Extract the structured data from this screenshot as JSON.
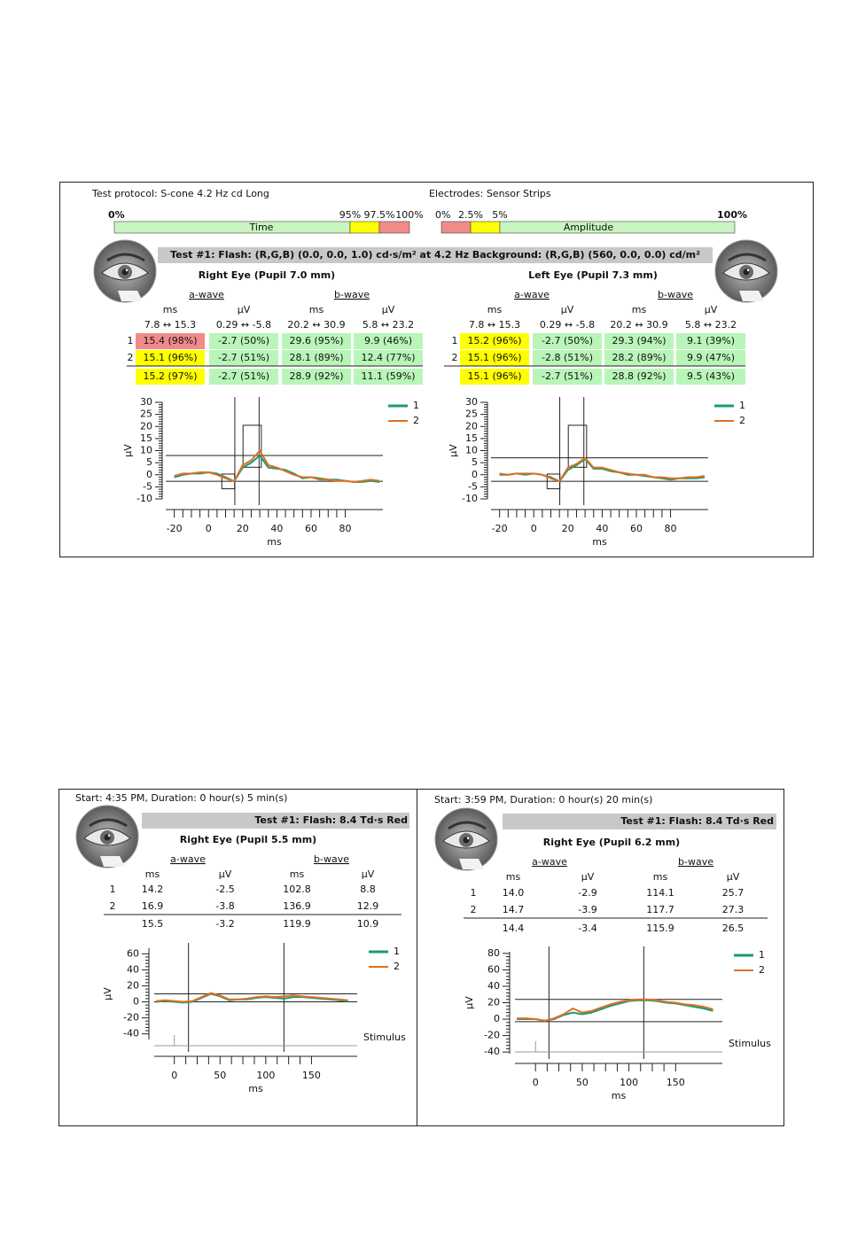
{
  "report": {
    "protocol": "Test protocol: S-cone 4.2 Hz cd Long",
    "electrodes": "Electrodes: Sensor Strips",
    "time_scale": {
      "labels": [
        "0%",
        "95%",
        "97.5%",
        "100%"
      ],
      "title": "Time"
    },
    "amplitude_scale": {
      "labels": [
        "0%",
        "2.5%",
        "5%",
        "100%"
      ],
      "title": "Amplitude"
    },
    "test_bar": "Test #1:   Flash: (R,G,B) (0.0, 0.0, 1.0) cd·s/m² at 4.2 Hz   Background: (R,G,B) (560, 0.0, 0.0) cd/m²",
    "eyes": [
      {
        "title": "Right Eye (Pupil 7.0 mm)",
        "wave_headers": [
          "a-wave",
          "b-wave"
        ],
        "units": [
          "ms",
          "µV",
          "ms",
          "µV"
        ],
        "ranges": [
          "7.8 ↔ 15.3",
          "0.29 ↔ -5.8",
          "20.2 ↔ 30.9",
          "5.8 ↔ 23.2"
        ],
        "rows": [
          {
            "label": "1",
            "cells": [
              "15.4 (98%)",
              "-2.7 (50%)",
              "29.6 (95%)",
              "9.9 (46%)"
            ],
            "colors": [
              "#f28a8a",
              "#b9f5b9",
              "#b9f5b9",
              "#b9f5b9"
            ]
          },
          {
            "label": "2",
            "cells": [
              "15.1 (96%)",
              "-2.7 (51%)",
              "28.1 (89%)",
              "12.4 (77%)"
            ],
            "colors": [
              "#ffff00",
              "#b9f5b9",
              "#b9f5b9",
              "#b9f5b9"
            ]
          }
        ],
        "summary": {
          "cells": [
            "15.2 (97%)",
            "-2.7 (51%)",
            "28.9 (92%)",
            "11.1 (59%)"
          ],
          "colors": [
            "#ffff00",
            "#b9f5b9",
            "#b9f5b9",
            "#b9f5b9"
          ]
        }
      },
      {
        "title": "Left Eye (Pupil 7.3 mm)",
        "wave_headers": [
          "a-wave",
          "b-wave"
        ],
        "units": [
          "ms",
          "µV",
          "ms",
          "µV"
        ],
        "ranges": [
          "7.8 ↔ 15.3",
          "0.29 ↔ -5.8",
          "20.2 ↔ 30.9",
          "5.8 ↔ 23.2"
        ],
        "rows": [
          {
            "label": "1",
            "cells": [
              "15.2 (96%)",
              "-2.7 (50%)",
              "29.3 (94%)",
              "9.1 (39%)"
            ],
            "colors": [
              "#ffff00",
              "#b9f5b9",
              "#b9f5b9",
              "#b9f5b9"
            ]
          },
          {
            "label": "2",
            "cells": [
              "15.1 (96%)",
              "-2.8 (51%)",
              "28.2 (89%)",
              "9.9 (47%)"
            ],
            "colors": [
              "#ffff00",
              "#b9f5b9",
              "#b9f5b9",
              "#b9f5b9"
            ]
          }
        ],
        "summary": {
          "cells": [
            "15.1 (96%)",
            "-2.7 (51%)",
            "28.8 (92%)",
            "9.5 (43%)"
          ],
          "colors": [
            "#ffff00",
            "#b9f5b9",
            "#b9f5b9",
            "#b9f5b9"
          ]
        }
      }
    ]
  },
  "sessions": [
    {
      "start": "Start: 4:35 PM, Duration: 0 hour(s) 5 min(s)",
      "test_bar": "Test #1:   Flash: 8.4 Td·s Red",
      "title": "Right Eye (Pupil 5.5 mm)",
      "wave_headers": [
        "a-wave",
        "b-wave"
      ],
      "units": [
        "ms",
        "µV",
        "ms",
        "µV"
      ],
      "rows": [
        {
          "label": "1",
          "cells": [
            "14.2",
            "-2.5",
            "102.8",
            "8.8"
          ]
        },
        {
          "label": "2",
          "cells": [
            "16.9",
            "-3.8",
            "136.9",
            "12.9"
          ]
        }
      ],
      "summary": {
        "cells": [
          "15.5",
          "-3.2",
          "119.9",
          "10.9"
        ]
      }
    },
    {
      "start": "Start: 3:59 PM, Duration: 0 hour(s) 20 min(s)",
      "test_bar": "Test #1:   Flash: 8.4 Td·s Red",
      "title": "Right Eye (Pupil 6.2 mm)",
      "wave_headers": [
        "a-wave",
        "b-wave"
      ],
      "units": [
        "ms",
        "µV",
        "ms",
        "µV"
      ],
      "rows": [
        {
          "label": "1",
          "cells": [
            "14.0",
            "-2.9",
            "114.1",
            "25.7"
          ]
        },
        {
          "label": "2",
          "cells": [
            "14.7",
            "-3.9",
            "117.7",
            "27.3"
          ]
        }
      ],
      "summary": {
        "cells": [
          "14.4",
          "-3.4",
          "115.9",
          "26.5"
        ]
      }
    }
  ],
  "chart_data": [
    {
      "type": "line",
      "xlabel": "ms",
      "ylabel": "µV",
      "legend": "top-right",
      "grid": false,
      "x": [
        -20,
        -15,
        -10,
        -5,
        0,
        5,
        10,
        15,
        20,
        25,
        30,
        35,
        40,
        45,
        50,
        55,
        60,
        65,
        70,
        75,
        80,
        85,
        90,
        95,
        100
      ],
      "series": [
        {
          "name": "1",
          "color": "#1b9a78",
          "values": [
            -1,
            0,
            0.5,
            0.5,
            1,
            0.5,
            -1,
            -2.7,
            3,
            5,
            8,
            3,
            2.5,
            2,
            0.5,
            -1.5,
            -1,
            -1.5,
            -2,
            -2,
            -2.5,
            -3,
            -3,
            -2.5,
            -3
          ]
        },
        {
          "name": "2",
          "color": "#e0701e",
          "values": [
            -0.5,
            0.5,
            0.5,
            1,
            1,
            0,
            -1.5,
            -2.7,
            4,
            6,
            10,
            4,
            3,
            1.5,
            0,
            -1,
            -1,
            -2,
            -2,
            -2.5,
            -2.5,
            -3,
            -2.5,
            -2,
            -2.5
          ]
        }
      ],
      "xlim": [
        -25,
        102
      ],
      "ylim": [
        -10,
        30
      ],
      "xticks": [
        -20,
        0,
        20,
        40,
        60,
        80
      ],
      "yticks": [
        -10,
        -5,
        0,
        5,
        10,
        15,
        20,
        25,
        30
      ],
      "vlines": [
        15.4,
        29.6
      ],
      "hlines": [
        8,
        -2.7
      ],
      "boxes": [
        [
          7.8,
          15.3,
          -5.8,
          0.29
        ],
        [
          20.2,
          30.9,
          3.1,
          20.5
        ]
      ]
    },
    {
      "type": "line",
      "xlabel": "ms",
      "ylabel": "µV",
      "legend": "top-right",
      "grid": false,
      "x": [
        -20,
        -15,
        -10,
        -5,
        0,
        5,
        10,
        15,
        20,
        25,
        30,
        35,
        40,
        45,
        50,
        55,
        60,
        65,
        70,
        75,
        80,
        85,
        90,
        95,
        100
      ],
      "series": [
        {
          "name": "1",
          "color": "#1b9a78",
          "values": [
            0,
            0,
            0.5,
            0,
            0.5,
            0,
            -1,
            -2.7,
            2,
            4,
            6.5,
            2.5,
            2.5,
            1.5,
            1,
            0,
            0,
            -0.5,
            -1,
            -1.5,
            -2,
            -1.5,
            -1.5,
            -1.5,
            -1
          ]
        },
        {
          "name": "2",
          "color": "#e0701e",
          "values": [
            0.5,
            0,
            0.5,
            0.5,
            0.5,
            0,
            -1.5,
            -2.7,
            3,
            4.5,
            7,
            3,
            3,
            2,
            1,
            0.5,
            0,
            0,
            -1,
            -1,
            -1.5,
            -1.5,
            -1,
            -1,
            -0.5
          ]
        }
      ],
      "xlim": [
        -25,
        102
      ],
      "ylim": [
        -10,
        30
      ],
      "xticks": [
        -20,
        0,
        20,
        40,
        60,
        80
      ],
      "yticks": [
        -10,
        -5,
        0,
        5,
        10,
        15,
        20,
        25,
        30
      ],
      "vlines": [
        15.2,
        29.3
      ],
      "hlines": [
        7,
        -2.7
      ],
      "boxes": [
        [
          7.8,
          15.3,
          -5.8,
          0.29
        ],
        [
          20.2,
          30.9,
          3.1,
          20.5
        ]
      ]
    },
    {
      "type": "line",
      "xlabel": "ms",
      "ylabel": "µV",
      "legend": "top-right",
      "grid": false,
      "stimulus_label": "Stimulus",
      "x": [
        -20,
        -10,
        0,
        10,
        20,
        30,
        40,
        50,
        60,
        70,
        80,
        90,
        100,
        110,
        120,
        130,
        140,
        150,
        160,
        170,
        180,
        190
      ],
      "series": [
        {
          "name": "1",
          "color": "#1b9a78",
          "values": [
            0,
            1,
            0,
            -1,
            0,
            5,
            10,
            7,
            2,
            3,
            3,
            5,
            6,
            5,
            4,
            6,
            6,
            5,
            4,
            3,
            2,
            1
          ]
        },
        {
          "name": "2",
          "color": "#e0701e",
          "values": [
            1,
            2,
            1,
            0,
            1,
            6,
            11,
            8,
            3,
            3,
            4,
            6,
            7,
            6,
            7,
            8,
            7,
            6,
            5,
            4,
            3,
            2
          ]
        }
      ],
      "xlim": [
        -22,
        200
      ],
      "ylim": [
        -47,
        67
      ],
      "xticks": [
        0,
        50,
        100,
        150
      ],
      "yticks": [
        -40,
        -20,
        0,
        20,
        40,
        60
      ],
      "vlines": [
        15.5,
        119.9
      ],
      "hlines": [
        10,
        0
      ]
    },
    {
      "type": "line",
      "xlabel": "ms",
      "ylabel": "µV",
      "legend": "top-right",
      "grid": false,
      "stimulus_label": "Stimulus",
      "x": [
        -20,
        -10,
        0,
        10,
        20,
        30,
        40,
        50,
        60,
        70,
        80,
        90,
        100,
        110,
        120,
        130,
        140,
        150,
        160,
        170,
        180,
        190
      ],
      "series": [
        {
          "name": "1",
          "color": "#1b9a78",
          "values": [
            0,
            0,
            0,
            -2,
            0,
            5,
            8,
            6,
            8,
            12,
            16,
            19,
            22,
            23,
            23,
            22,
            20,
            19,
            17,
            15,
            13,
            10
          ]
        },
        {
          "name": "2",
          "color": "#e0701e",
          "values": [
            1,
            1,
            0,
            -2,
            1,
            6,
            13,
            8,
            10,
            14,
            18,
            21,
            23,
            24,
            24,
            23,
            21,
            20,
            18,
            17,
            15,
            12
          ]
        }
      ],
      "xlim": [
        -22,
        200
      ],
      "ylim": [
        -42,
        82
      ],
      "xticks": [
        0,
        50,
        100,
        150
      ],
      "yticks": [
        -40,
        -20,
        0,
        20,
        40,
        60,
        80
      ],
      "vlines": [
        14.4,
        115.9
      ],
      "hlines": [
        24,
        -3
      ]
    }
  ]
}
